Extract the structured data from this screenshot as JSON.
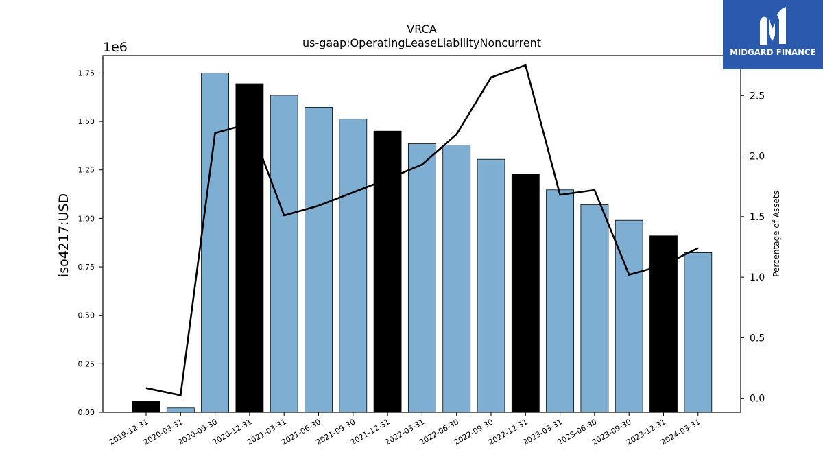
{
  "chart_data": {
    "type": "bar",
    "title": "VRCA",
    "subtitle": "us-gaap:OperatingLeaseLiabilityNoncurrent",
    "ylabel": "iso4217:USD",
    "y2label": "Percentage of Assets",
    "y_offset_label": "1e6",
    "ylim": [
      0,
      1840000
    ],
    "y2lim": [
      -0.115,
      2.83
    ],
    "yticks": [
      "0.00",
      "0.25",
      "0.50",
      "0.75",
      "1.00",
      "1.25",
      "1.50",
      "1.75"
    ],
    "y2ticks": [
      "0.0",
      "0.5",
      "1.0",
      "1.5",
      "2.0",
      "2.5"
    ],
    "categories": [
      "2019-12-31",
      "2020-03-31",
      "2020-09-30",
      "2020-12-31",
      "2021-03-31",
      "2021-06-30",
      "2021-09-30",
      "2021-12-31",
      "2022-03-31",
      "2022-06-30",
      "2022-09-30",
      "2022-12-31",
      "2023-03-31",
      "2023-06-30",
      "2023-09-30",
      "2023-12-31",
      "2024-03-31"
    ],
    "series": [
      {
        "kind": "bar",
        "axis": "left",
        "values": [
          58000,
          22000,
          1750000,
          1695000,
          1635000,
          1573000,
          1513000,
          1450000,
          1385000,
          1378000,
          1305000,
          1228000,
          1147000,
          1070000,
          990000,
          910000,
          823000
        ],
        "annual": [
          true,
          false,
          false,
          true,
          false,
          false,
          false,
          true,
          false,
          false,
          false,
          true,
          false,
          false,
          false,
          true,
          false
        ]
      },
      {
        "kind": "line",
        "axis": "right",
        "values": [
          0.085,
          0.025,
          2.19,
          2.27,
          1.51,
          1.59,
          1.7,
          1.81,
          1.93,
          2.18,
          2.65,
          2.75,
          1.68,
          1.72,
          1.02,
          1.1,
          1.24
        ]
      }
    ],
    "colors": {
      "quarterly_bar": "#7eafd3",
      "annual_bar": "#000000",
      "line": "#000000",
      "bar_edge": "#000000"
    },
    "legend": "none",
    "grid": false
  },
  "branding": {
    "logo_text": "MIDGARD FINANCE",
    "logo_icon": "midgard-m-icon",
    "background": "#2b5aad"
  }
}
